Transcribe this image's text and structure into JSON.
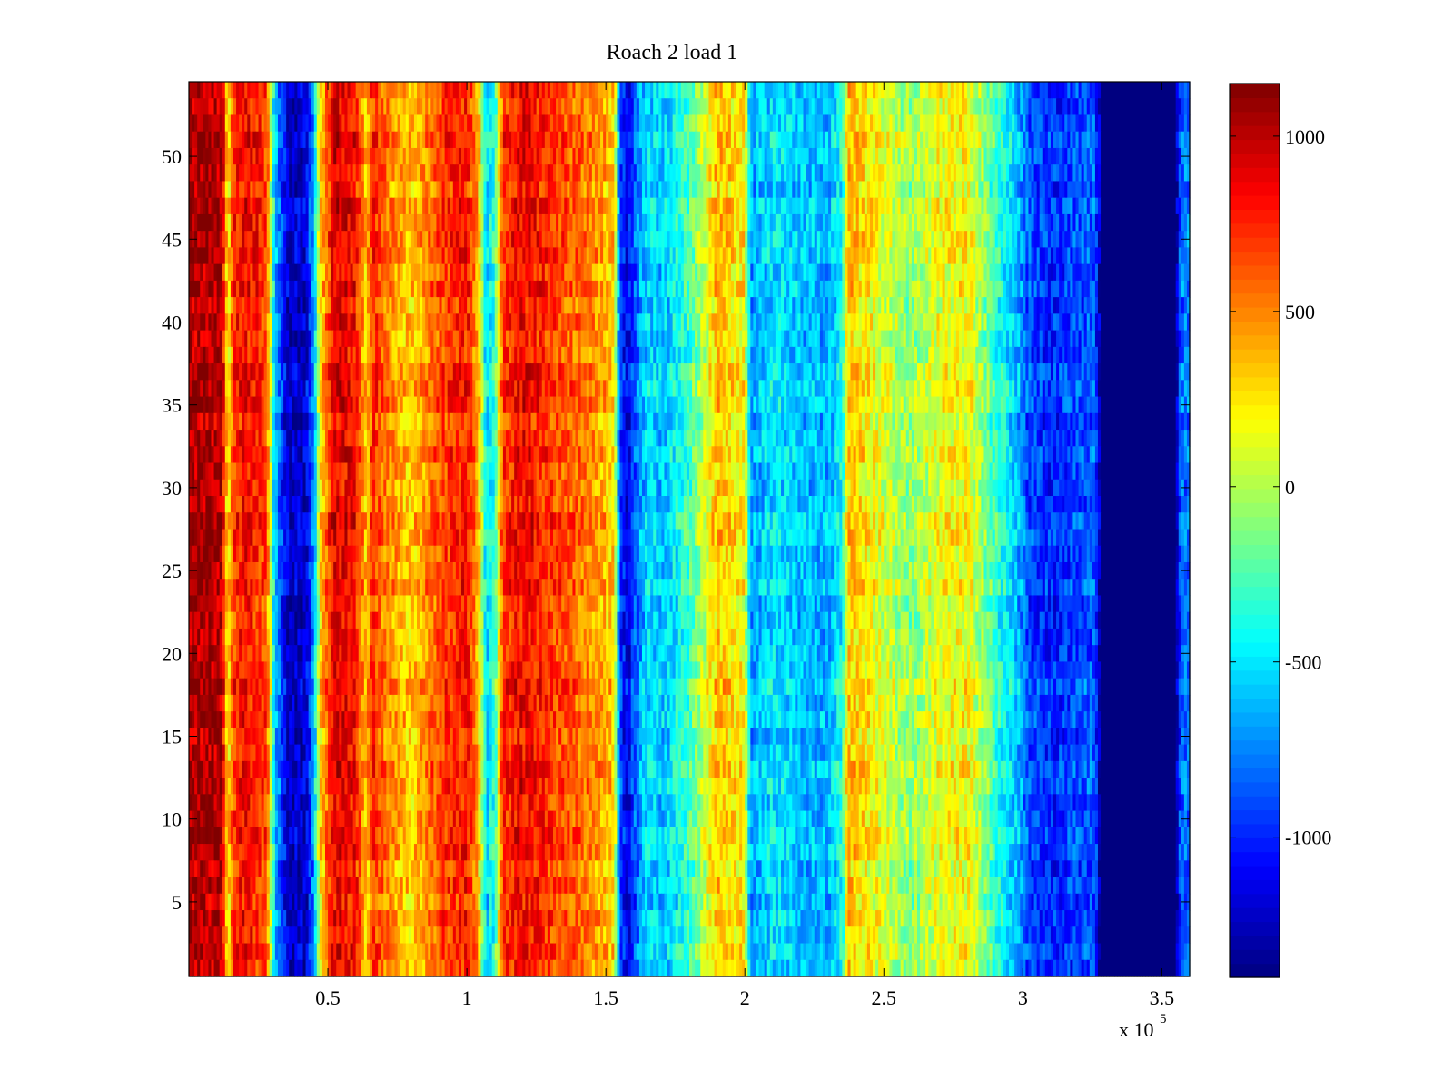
{
  "chart_data": {
    "type": "heatmap",
    "title": "Roach 2 load 1",
    "xlabel": "",
    "ylabel": "",
    "x_exponent_label": "x 10",
    "x_exponent_power": "5",
    "xlim": [
      0,
      3.6
    ],
    "ylim": [
      0.5,
      54.5
    ],
    "x_ticks": [
      0.5,
      1,
      1.5,
      2,
      2.5,
      3,
      3.5
    ],
    "x_tick_labels": [
      "0.5",
      "1",
      "1.5",
      "2",
      "2.5",
      "3",
      "3.5"
    ],
    "y_ticks": [
      5,
      10,
      15,
      20,
      25,
      30,
      35,
      40,
      45,
      50
    ],
    "y_tick_labels": [
      "5",
      "10",
      "15",
      "20",
      "25",
      "30",
      "35",
      "40",
      "45",
      "50"
    ],
    "rows": 54,
    "colormap": "jet",
    "clim": [
      -1400,
      1150
    ],
    "colorbar": {
      "ticks": [
        -1000,
        -500,
        0,
        500,
        1000
      ],
      "tick_labels": [
        "-1000",
        "-500",
        "0",
        "500",
        "1000"
      ]
    },
    "column_profile": {
      "x": [
        0,
        0.12,
        0.14,
        0.16,
        0.2,
        0.28,
        0.31,
        0.33,
        0.36,
        0.42,
        0.45,
        0.47,
        0.52,
        0.6,
        0.64,
        0.66,
        0.7,
        0.8,
        0.9,
        1.0,
        1.04,
        1.07,
        1.1,
        1.13,
        1.2,
        1.3,
        1.45,
        1.53,
        1.55,
        1.58,
        1.6,
        1.65,
        1.7,
        1.8,
        1.9,
        2.0,
        2.02,
        2.1,
        2.2,
        2.3,
        2.35,
        2.37,
        2.4,
        2.5,
        2.6,
        2.7,
        2.8,
        2.9,
        2.98,
        3.02,
        3.1,
        3.2,
        3.26,
        3.28,
        3.55,
        3.57,
        3.6
      ],
      "values": [
        1050,
        1000,
        150,
        700,
        850,
        650,
        -600,
        -900,
        -1250,
        -1200,
        -700,
        200,
        900,
        800,
        300,
        750,
        550,
        300,
        650,
        800,
        400,
        -550,
        -350,
        700,
        850,
        700,
        500,
        300,
        -900,
        -1150,
        -900,
        -500,
        -600,
        -300,
        350,
        200,
        -700,
        -500,
        -600,
        -650,
        -400,
        350,
        300,
        100,
        -100,
        150,
        200,
        -300,
        -600,
        -900,
        -1000,
        -900,
        -850,
        -1400,
        -1400,
        -800,
        -800
      ]
    }
  }
}
